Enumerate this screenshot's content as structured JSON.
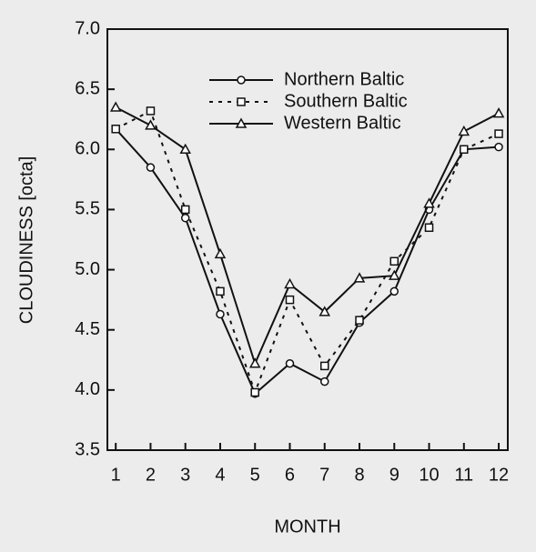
{
  "chart_data": {
    "type": "line",
    "x_label": "MONTH",
    "y_label": "CLOUDINESS  [octa]",
    "x": [
      1,
      2,
      3,
      4,
      5,
      6,
      7,
      8,
      9,
      10,
      11,
      12
    ],
    "series": [
      {
        "name": "Northern Baltic",
        "color": "#111111",
        "marker": "circle",
        "dash": "solid",
        "values": [
          6.17,
          5.85,
          5.43,
          4.63,
          3.97,
          4.22,
          4.07,
          4.56,
          4.82,
          5.5,
          6.0,
          6.02
        ]
      },
      {
        "name": "Southern Baltic",
        "color": "#111111",
        "marker": "square",
        "dash": "dotted",
        "values": [
          6.17,
          6.32,
          5.5,
          4.82,
          3.98,
          4.75,
          4.2,
          4.58,
          5.07,
          5.35,
          6.0,
          6.13
        ]
      },
      {
        "name": "Western Baltic",
        "color": "#111111",
        "marker": "triangle",
        "dash": "solid",
        "values": [
          6.35,
          6.2,
          6.0,
          5.13,
          4.22,
          4.88,
          4.65,
          4.93,
          4.95,
          5.55,
          6.15,
          6.3
        ]
      }
    ],
    "xlim": [
      0.76,
      12.26
    ],
    "xticks": [
      1,
      2,
      3,
      4,
      5,
      6,
      7,
      8,
      9,
      10,
      11,
      12
    ],
    "ylim": [
      3.5,
      7.0
    ],
    "yticks": [
      {
        "value": 3.5,
        "label": "3.5"
      },
      {
        "value": 4.0,
        "label": "4.0"
      },
      {
        "value": 4.5,
        "label": "4.5"
      },
      {
        "value": 5.0,
        "label": "5.0"
      },
      {
        "value": 5.5,
        "label": "5.5"
      },
      {
        "value": 6.0,
        "label": "6.0"
      },
      {
        "value": 6.5,
        "label": "6.5"
      },
      {
        "value": 7.0,
        "label": "7.0"
      }
    ],
    "grid": false,
    "legend": "upper center"
  }
}
